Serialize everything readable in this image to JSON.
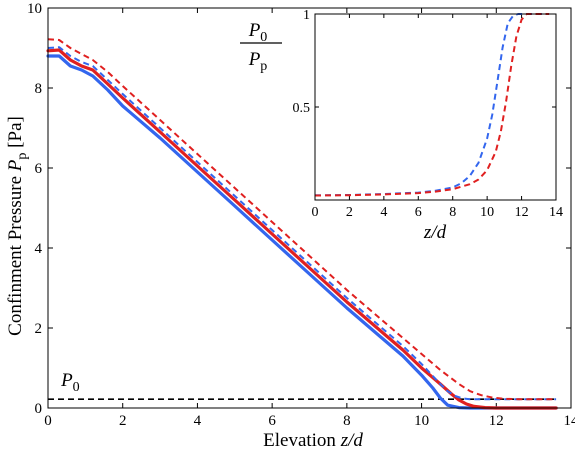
{
  "chart_data": [
    {
      "type": "line",
      "title": "",
      "xlabel_text": "Elevation ",
      "xlabel_var": "z/d",
      "ylabel_text": "Confinment Pressure ",
      "ylabel_var": "P",
      "ylabel_sub": "p",
      "ylabel_unit": " [Pa]",
      "xlim": [
        0,
        14
      ],
      "ylim": [
        0,
        10
      ],
      "xticks": [
        "0",
        "2",
        "4",
        "6",
        "8",
        "10",
        "12",
        "14"
      ],
      "yticks": [
        "0",
        "2",
        "4",
        "6",
        "8",
        "10"
      ],
      "annotation": {
        "text": "P",
        "sub": "0",
        "x": 0.35,
        "y": 0.55
      },
      "reference_line": {
        "y": 0.22,
        "style": "dashed",
        "color": "#000000"
      },
      "series": [
        {
          "color": "#3366ee",
          "dash": false,
          "x": [
            0,
            0.3,
            0.6,
            0.9,
            1.2,
            1.6,
            2,
            3,
            4,
            5,
            6,
            7,
            8,
            9,
            9.5,
            10,
            10.3,
            10.5,
            10.7,
            11,
            11.3,
            12,
            13.6
          ],
          "y": [
            8.8,
            8.8,
            8.55,
            8.45,
            8.3,
            7.95,
            7.55,
            6.75,
            5.9,
            5.05,
            4.2,
            3.35,
            2.5,
            1.7,
            1.3,
            0.82,
            0.5,
            0.25,
            0.07,
            0.01,
            0,
            0,
            0
          ]
        },
        {
          "color": "#e02020",
          "dash": false,
          "x": [
            0,
            0.3,
            0.6,
            0.9,
            1.2,
            1.6,
            2,
            3,
            4,
            5,
            6,
            7,
            8,
            9,
            9.5,
            10,
            10.5,
            10.8,
            11,
            11.2,
            11.4,
            11.7,
            12,
            13.6
          ],
          "y": [
            8.93,
            8.95,
            8.7,
            8.55,
            8.45,
            8.1,
            7.75,
            6.9,
            6.05,
            5.2,
            4.35,
            3.5,
            2.65,
            1.85,
            1.45,
            1.0,
            0.6,
            0.35,
            0.2,
            0.1,
            0.04,
            0.01,
            0,
            0
          ]
        },
        {
          "color": "#3366ee",
          "dash": true,
          "x": [
            0,
            0.3,
            0.6,
            0.9,
            1.2,
            1.6,
            2,
            3,
            4,
            5,
            6,
            7,
            8,
            9,
            9.5,
            10,
            10.3,
            10.5,
            10.7,
            10.9,
            11.1,
            11.3,
            11.6,
            13.6
          ],
          "y": [
            9.0,
            9.02,
            8.8,
            8.65,
            8.55,
            8.2,
            7.85,
            7.0,
            6.15,
            5.3,
            4.45,
            3.6,
            2.75,
            1.95,
            1.55,
            1.1,
            0.8,
            0.6,
            0.42,
            0.3,
            0.24,
            0.22,
            0.22,
            0.22
          ]
        },
        {
          "color": "#e02020",
          "dash": true,
          "x": [
            0,
            0.3,
            0.6,
            0.9,
            1.2,
            1.6,
            2,
            3,
            4,
            5,
            6,
            7,
            8,
            9,
            9.5,
            10,
            10.5,
            11,
            11.3,
            11.6,
            11.9,
            12.2,
            12.6,
            13.6
          ],
          "y": [
            9.22,
            9.2,
            9.0,
            8.85,
            8.7,
            8.4,
            8.05,
            7.2,
            6.35,
            5.5,
            4.65,
            3.8,
            2.95,
            2.15,
            1.75,
            1.35,
            0.95,
            0.6,
            0.42,
            0.32,
            0.26,
            0.23,
            0.22,
            0.22
          ]
        }
      ]
    },
    {
      "type": "line",
      "title": "",
      "xlabel_var": "z/d",
      "ylabel_num_var": "P",
      "ylabel_num_sub": "0",
      "ylabel_den_var": "P",
      "ylabel_den_sub": "p",
      "xlim": [
        0,
        14
      ],
      "ylim": [
        0,
        1
      ],
      "xticks": [
        "0",
        "2",
        "4",
        "6",
        "8",
        "10",
        "12",
        "14"
      ],
      "yticks": [
        "0.5",
        "1"
      ],
      "series": [
        {
          "color": "#3366ee",
          "dash": true,
          "x": [
            0,
            2,
            4,
            6,
            7,
            8,
            8.5,
            9,
            9.5,
            10,
            10.3,
            10.6,
            10.9,
            11.2,
            11.5,
            11.8,
            12.2,
            13.6
          ],
          "y": [
            0.025,
            0.027,
            0.032,
            0.04,
            0.05,
            0.068,
            0.09,
            0.13,
            0.2,
            0.33,
            0.46,
            0.64,
            0.82,
            0.95,
            0.99,
            1.0,
            1.0,
            1.0
          ]
        },
        {
          "color": "#e02020",
          "dash": true,
          "x": [
            0,
            2,
            4,
            6,
            7,
            8,
            9,
            9.5,
            10,
            10.5,
            10.8,
            11.1,
            11.4,
            11.7,
            12,
            12.3,
            12.8,
            13.6
          ],
          "y": [
            0.024,
            0.026,
            0.03,
            0.037,
            0.045,
            0.058,
            0.085,
            0.11,
            0.16,
            0.26,
            0.37,
            0.53,
            0.72,
            0.88,
            0.97,
            1.0,
            1.0,
            1.0
          ]
        }
      ]
    }
  ]
}
